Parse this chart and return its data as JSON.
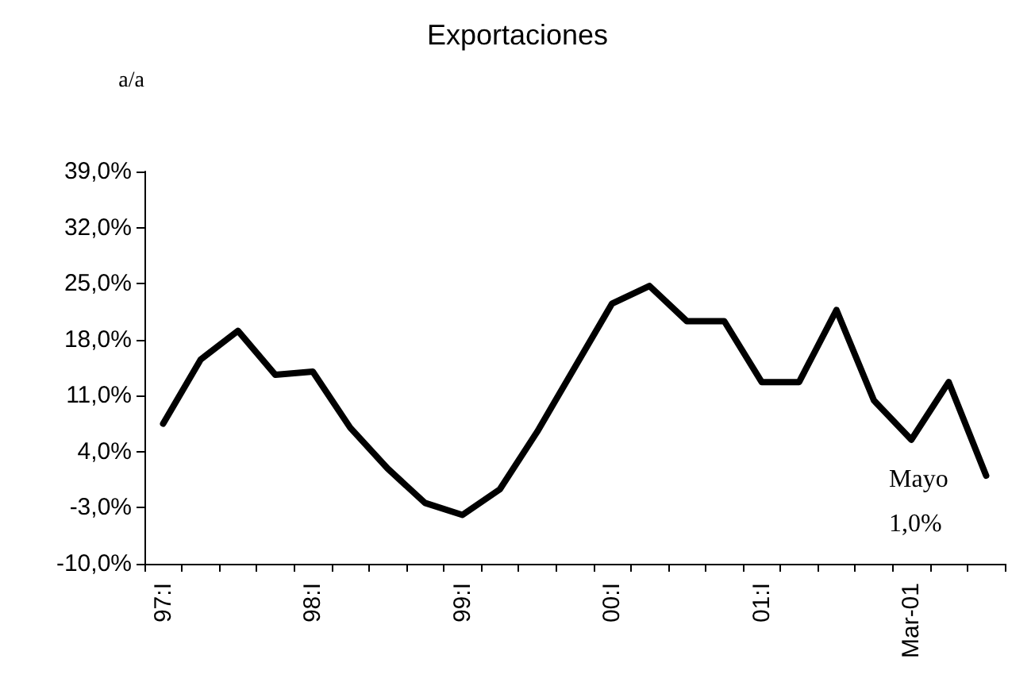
{
  "chart_data": {
    "type": "line",
    "title": "Exportaciones",
    "ylabel": "a/a",
    "categories": [
      "97:I",
      null,
      null,
      null,
      "98:I",
      null,
      null,
      null,
      "99:I",
      null,
      null,
      null,
      "00:I",
      null,
      null,
      null,
      "01:I",
      null,
      null,
      null,
      "Mar-01",
      null,
      null
    ],
    "series": [
      {
        "color": "#000000",
        "values": [
          7.5,
          15.5,
          19.1,
          13.6,
          14.0,
          7.0,
          1.9,
          -2.4,
          -3.9,
          -0.7,
          6.5,
          14.5,
          22.5,
          24.7,
          20.3,
          20.3,
          12.7,
          12.7,
          21.7,
          10.4,
          5.5,
          12.7,
          1.0
        ]
      }
    ],
    "ylim": [
      -10,
      39
    ],
    "yticks": [
      {
        "value": -10,
        "label": "-10,0%"
      },
      {
        "value": -3,
        "label": "-3,0%"
      },
      {
        "value": 4,
        "label": "4,0%"
      },
      {
        "value": 11,
        "label": "11,0%"
      },
      {
        "value": 18,
        "label": "18,0%"
      },
      {
        "value": 25,
        "label": "25,0%"
      },
      {
        "value": 32,
        "label": "32,0%"
      },
      {
        "value": 39,
        "label": "39,0%"
      }
    ],
    "annotations": [
      "Mayo\n1,0%"
    ],
    "grid": false,
    "marker": "none",
    "line_style": "solid"
  }
}
